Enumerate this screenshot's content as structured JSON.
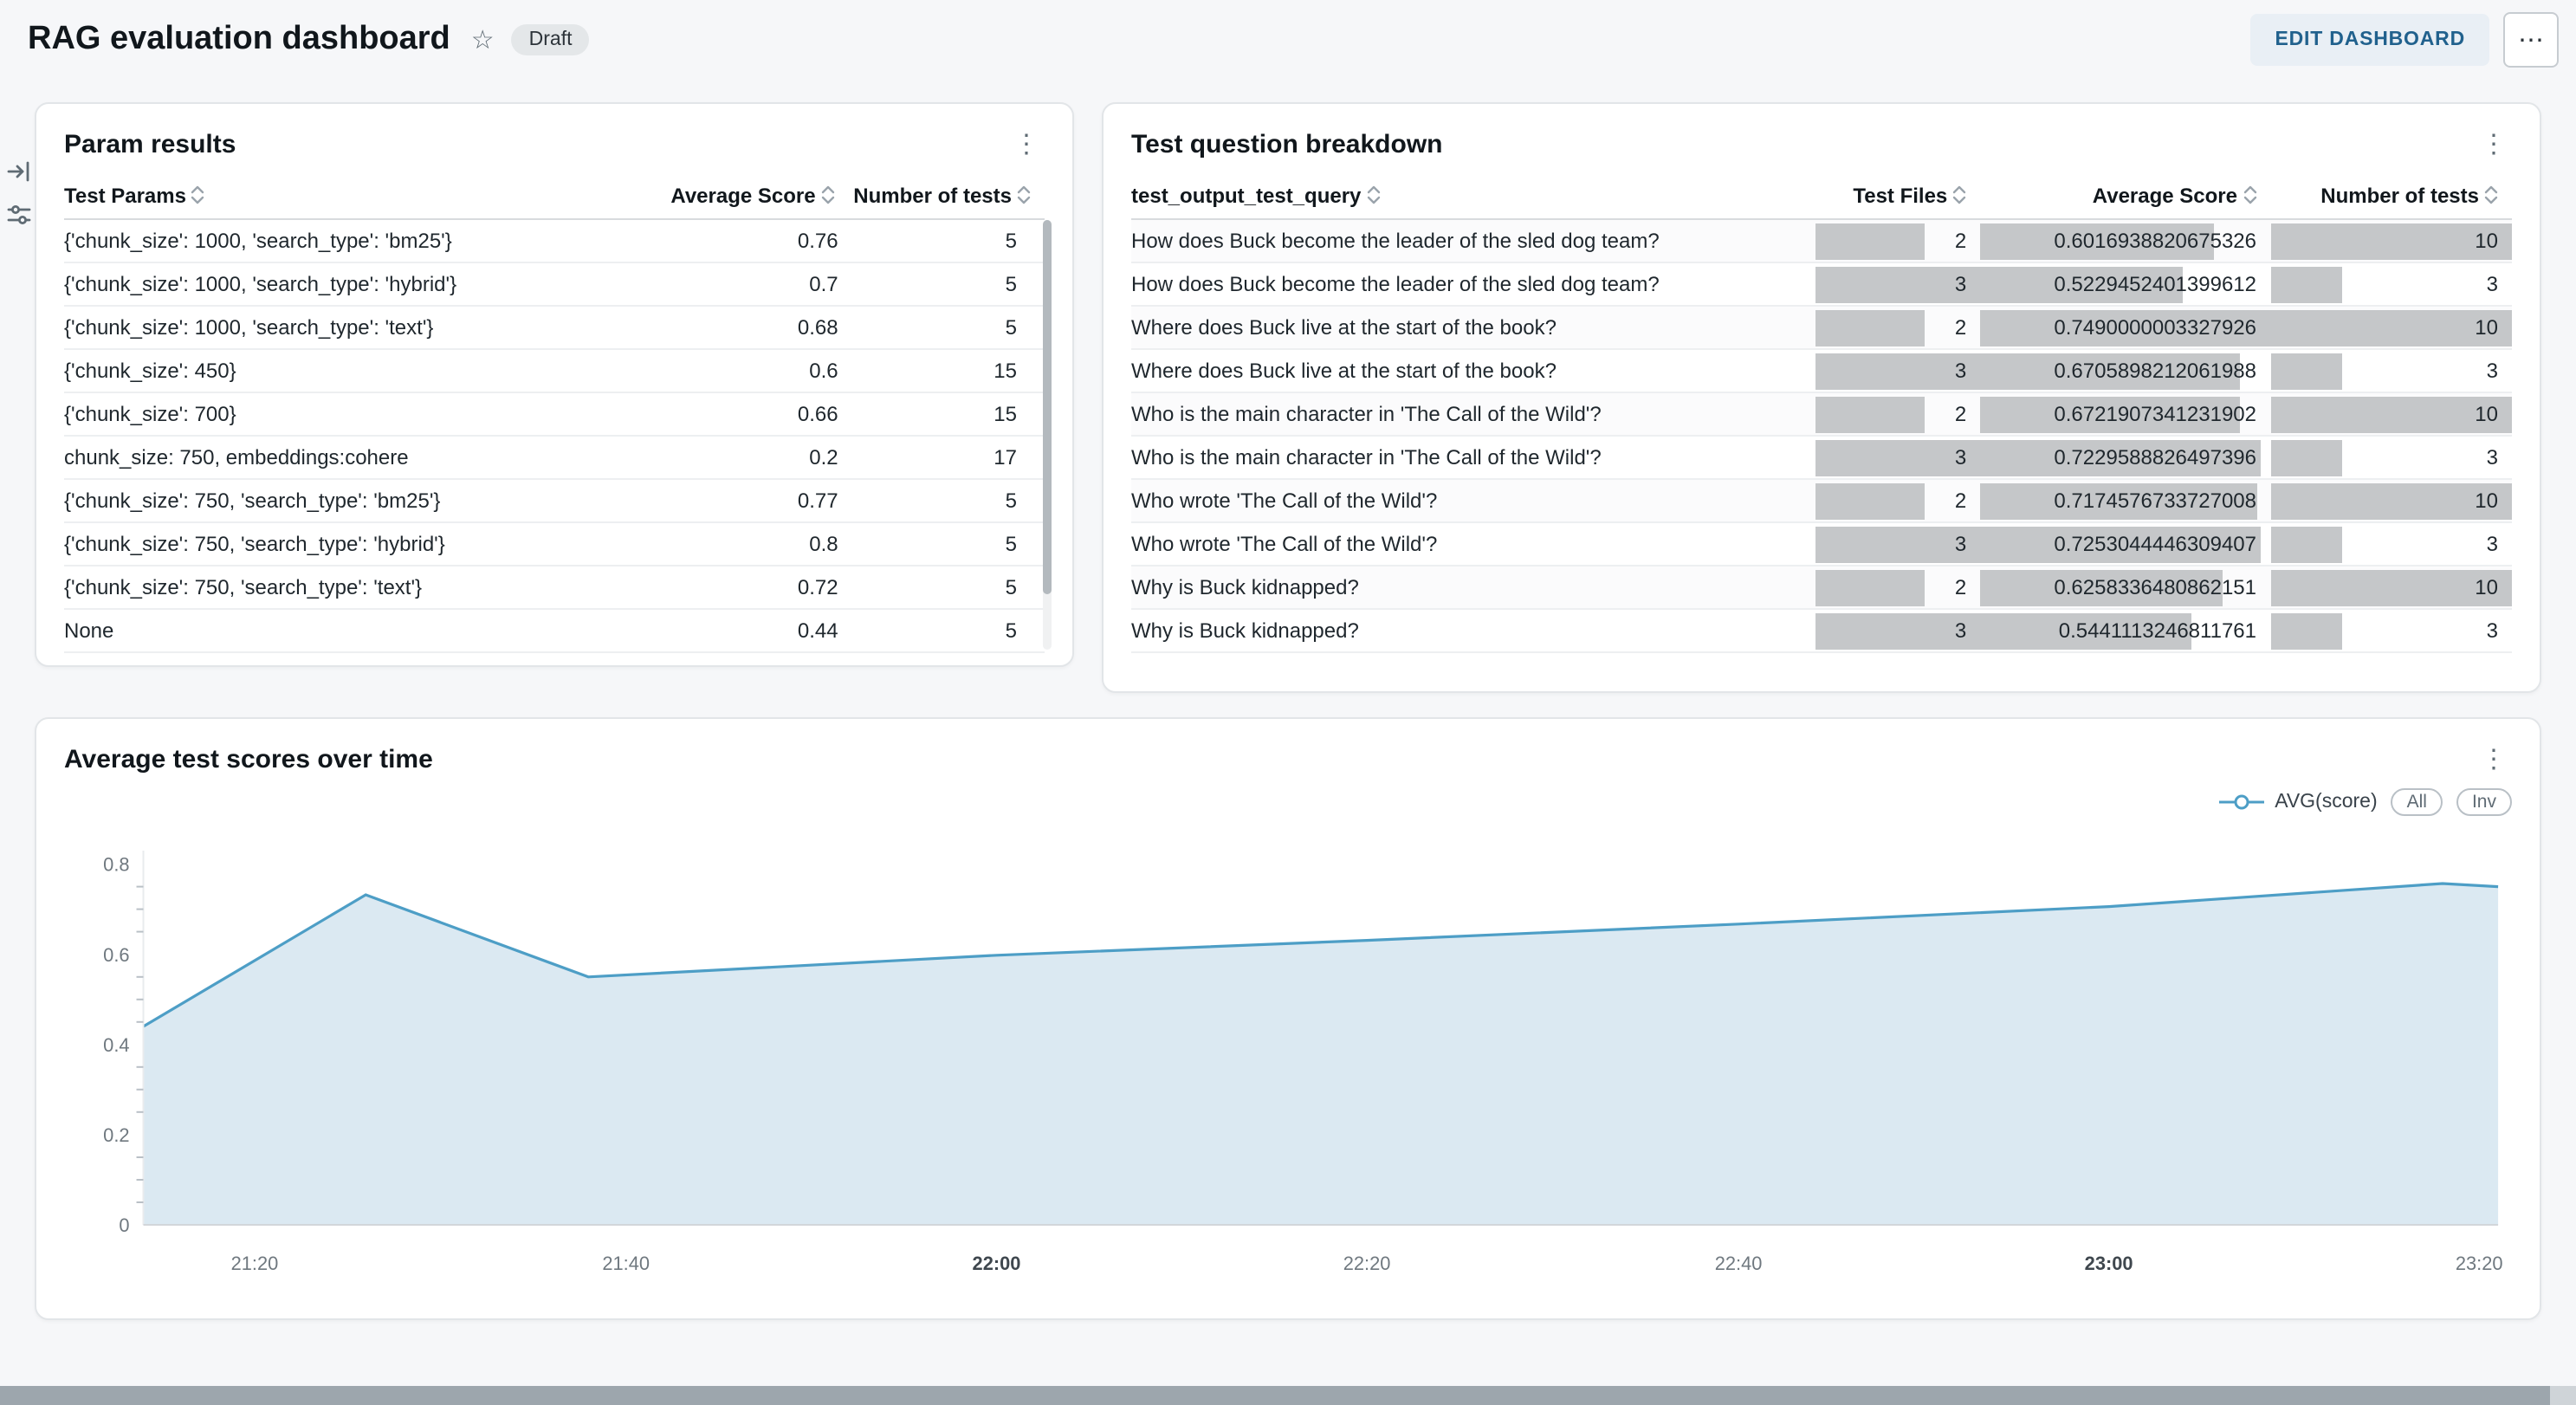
{
  "header": {
    "title": "RAG evaluation dashboard",
    "status_badge": "Draft",
    "edit_button": "EDIT DASHBOARD"
  },
  "icons": {
    "star": "☆",
    "more_menu": "⋯",
    "kebab": "⋮",
    "sort": "chevron-up-down",
    "open_panel": "arrow-into-bar",
    "filter": "sliders"
  },
  "cards": {
    "param_results": {
      "title": "Param results",
      "columns": [
        "Test Params",
        "Average Score",
        "Number of tests"
      ],
      "rows": [
        [
          "{'chunk_size': 1000, 'search_type': 'bm25'}",
          "0.76",
          "5"
        ],
        [
          "{'chunk_size': 1000, 'search_type': 'hybrid'}",
          "0.7",
          "5"
        ],
        [
          "{'chunk_size': 1000, 'search_type': 'text'}",
          "0.68",
          "5"
        ],
        [
          "{'chunk_size': 450}",
          "0.6",
          "15"
        ],
        [
          "{'chunk_size': 700}",
          "0.66",
          "15"
        ],
        [
          "chunk_size: 750, embeddings:cohere",
          "0.2",
          "17"
        ],
        [
          "{'chunk_size': 750, 'search_type': 'bm25'}",
          "0.77",
          "5"
        ],
        [
          "{'chunk_size': 750, 'search_type': 'hybrid'}",
          "0.8",
          "5"
        ],
        [
          "{'chunk_size': 750, 'search_type': 'text'}",
          "0.72",
          "5"
        ],
        [
          "None",
          "0.44",
          "5"
        ]
      ]
    },
    "question_breakdown": {
      "title": "Test question breakdown",
      "columns": [
        "test_output_test_query",
        "Test Files",
        "Average Score",
        "Number of tests"
      ],
      "bar_maxima": {
        "test_files": 3,
        "avg_score": 0.7490000003327926,
        "num_tests": 10
      },
      "rows": [
        {
          "query": "How does Buck become the leader of the sled dog team?",
          "test_files": 2,
          "avg_score": "0.6016938820675326",
          "num_tests": 10
        },
        {
          "query": "How does Buck become the leader of the sled dog team?",
          "test_files": 3,
          "avg_score": "0.5229452401399612",
          "num_tests": 3
        },
        {
          "query": "Where does Buck live at the start of the book?",
          "test_files": 2,
          "avg_score": "0.7490000003327926",
          "num_tests": 10
        },
        {
          "query": "Where does Buck live at the start of the book?",
          "test_files": 3,
          "avg_score": "0.6705898212061988",
          "num_tests": 3
        },
        {
          "query": "Who is the main character in 'The Call of the Wild'?",
          "test_files": 2,
          "avg_score": "0.6721907341231902",
          "num_tests": 10
        },
        {
          "query": "Who is the main character in 'The Call of the Wild'?",
          "test_files": 3,
          "avg_score": "0.7229588826497396",
          "num_tests": 3
        },
        {
          "query": "Who wrote 'The Call of the Wild'?",
          "test_files": 2,
          "avg_score": "0.7174576733727008",
          "num_tests": 10
        },
        {
          "query": "Who wrote 'The Call of the Wild'?",
          "test_files": 3,
          "avg_score": "0.7253044446309407",
          "num_tests": 3
        },
        {
          "query": "Why is Buck kidnapped?",
          "test_files": 2,
          "avg_score": "0.6258336480862151",
          "num_tests": 10
        },
        {
          "query": "Why is Buck kidnapped?",
          "test_files": 3,
          "avg_score": "0.5441113246811761",
          "num_tests": 3
        }
      ]
    },
    "scores_over_time": {
      "title": "Average test scores over time",
      "legend": {
        "series_label": "AVG(score)",
        "all_button": "All",
        "inv_button": "Inv"
      }
    }
  },
  "chart_data": {
    "type": "area",
    "title": "Average test scores over time",
    "legend_position": "top-right",
    "grid": false,
    "series": [
      {
        "name": "AVG(score)",
        "color": "#4d9ec6",
        "fill": "#dbe9f2",
        "points": [
          {
            "time": "21:14",
            "x": 21.233,
            "y": 0.44
          },
          {
            "time": "21:26",
            "x": 21.433,
            "y": 0.732
          },
          {
            "time": "21:38",
            "x": 21.633,
            "y": 0.55
          },
          {
            "time": "22:00",
            "x": 22.0,
            "y": 0.598
          },
          {
            "time": "22:20",
            "x": 22.333,
            "y": 0.631
          },
          {
            "time": "22:40",
            "x": 22.667,
            "y": 0.667
          },
          {
            "time": "23:00",
            "x": 23.0,
            "y": 0.706
          },
          {
            "time": "23:18",
            "x": 23.3,
            "y": 0.757
          },
          {
            "time": "23:21",
            "x": 23.35,
            "y": 0.75
          }
        ]
      }
    ],
    "x_ticks": [
      {
        "label": "21:20",
        "x": 21.333,
        "bold": false
      },
      {
        "label": "21:40",
        "x": 21.667,
        "bold": false
      },
      {
        "label": "22:00",
        "x": 22.0,
        "bold": true
      },
      {
        "label": "22:20",
        "x": 22.333,
        "bold": false
      },
      {
        "label": "22:40",
        "x": 22.667,
        "bold": false
      },
      {
        "label": "23:00",
        "x": 23.0,
        "bold": true
      },
      {
        "label": "23:20",
        "x": 23.333,
        "bold": false
      }
    ],
    "y_ticks": [
      0,
      0.2,
      0.4,
      0.6,
      0.8
    ],
    "y_minor_step": 0.05,
    "xlim": [
      21.233,
      23.35
    ],
    "ylim": [
      0,
      0.83
    ],
    "xlabel": "",
    "ylabel": ""
  }
}
